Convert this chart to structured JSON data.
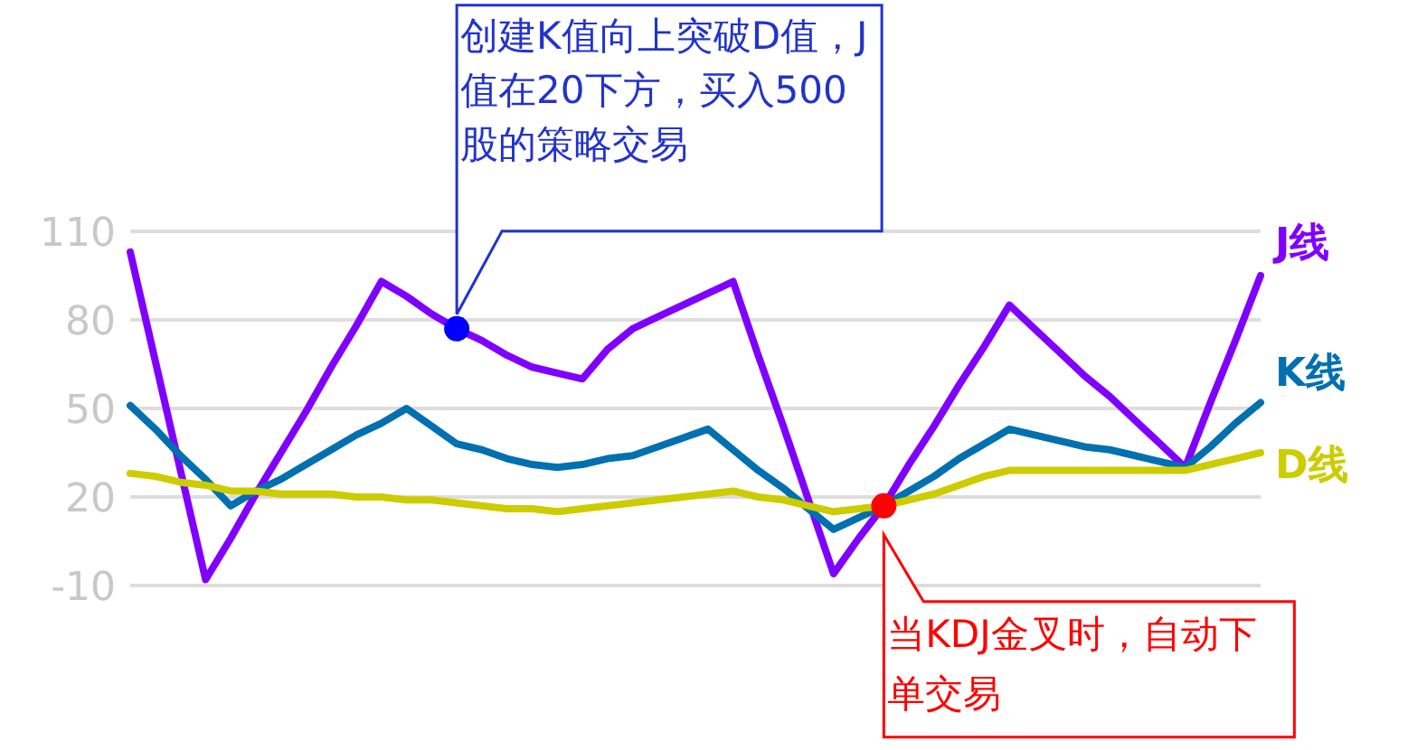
{
  "chart_data": {
    "type": "line",
    "categories": [
      null,
      null,
      null,
      null,
      null,
      null,
      null,
      null,
      null,
      null,
      null,
      null,
      null,
      null,
      null,
      null,
      null,
      null,
      null,
      null,
      null,
      null,
      null,
      null,
      null,
      null,
      null,
      null,
      null,
      null,
      null,
      null,
      null,
      null,
      null,
      null,
      null,
      null,
      null,
      null,
      null,
      null,
      null,
      null,
      null,
      null
    ],
    "ylim": [
      -10,
      110
    ],
    "yticks": [
      -10,
      20,
      50,
      80,
      110
    ],
    "tick_labels": "y",
    "grid": "y",
    "marker": "none",
    "line_style": "solid",
    "series": [
      {
        "name": "J线",
        "color": "#8000ff",
        "values": [
          103,
          66,
          29,
          -8,
          6,
          21,
          35,
          49,
          64,
          78,
          93,
          88,
          82,
          77,
          73,
          68,
          64,
          62,
          60,
          70,
          77,
          81,
          85,
          89,
          93,
          68,
          44,
          19,
          -6,
          6,
          17,
          31,
          44,
          58,
          71,
          85,
          77,
          69,
          61,
          54,
          46,
          38,
          30,
          52,
          73,
          95
        ]
      },
      {
        "name": "K线",
        "color": "#0070b0",
        "values": [
          51,
          43,
          34,
          26,
          17,
          22,
          26,
          31,
          36,
          41,
          45,
          50,
          44,
          38,
          36,
          33,
          31,
          30,
          31,
          33,
          34,
          37,
          40,
          43,
          36,
          29,
          23,
          16,
          9,
          13,
          17,
          22,
          27,
          33,
          38,
          43,
          41,
          39,
          37,
          36,
          34,
          32,
          30,
          37,
          45,
          52
        ]
      },
      {
        "name": "D线",
        "color": "#cccc00",
        "values": [
          28,
          27,
          25,
          24,
          22,
          22,
          21,
          21,
          21,
          20,
          20,
          19,
          19,
          18,
          17,
          16,
          16,
          15,
          16,
          17,
          18,
          19,
          20,
          21,
          22,
          20,
          19,
          17,
          15,
          16,
          17,
          19,
          21,
          24,
          27,
          29,
          29,
          29,
          29,
          29,
          29,
          29,
          29,
          31,
          33,
          35
        ]
      },
      {
        "type": "scatter",
        "marker": "circle",
        "color": "#0000ff",
        "values": [
          null,
          null,
          null,
          null,
          null,
          null,
          null,
          null,
          null,
          null,
          null,
          null,
          null,
          77,
          null,
          null,
          null,
          null,
          null,
          null,
          null,
          null,
          null,
          null,
          null,
          null,
          null,
          null,
          null,
          null,
          null,
          null,
          null,
          null,
          null,
          null,
          null,
          null,
          null,
          null,
          null,
          null,
          null,
          null,
          null,
          null
        ]
      },
      {
        "type": "scatter",
        "marker": "circle",
        "color": "#ff0000",
        "values": [
          null,
          null,
          null,
          null,
          null,
          null,
          null,
          null,
          null,
          null,
          null,
          null,
          null,
          null,
          null,
          null,
          null,
          null,
          null,
          null,
          null,
          null,
          null,
          null,
          null,
          null,
          null,
          null,
          null,
          null,
          17,
          null,
          null,
          null,
          null,
          null,
          null,
          null,
          null,
          null,
          null,
          null,
          null,
          null,
          null,
          null
        ]
      }
    ],
    "annotations": [
      "创建K值向上突破D值，J值在20下方，买入500股的策略交易",
      "当KDJ金叉时，自动下单交易"
    ]
  }
}
